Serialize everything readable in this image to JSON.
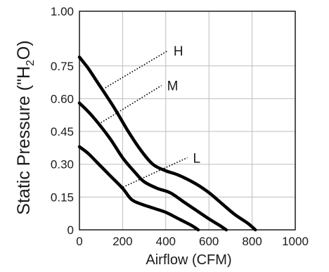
{
  "chart_data": {
    "type": "line",
    "title": "",
    "xlabel": "Airflow (CFM)",
    "ylabel": "Static Pressure (\"H",
    "ylabel_subscript": "2",
    "ylabel_suffix": "O)",
    "xlim": [
      0,
      1000
    ],
    "ylim": [
      0,
      1.0
    ],
    "x_ticks": [
      0,
      200,
      400,
      600,
      800,
      1000
    ],
    "x_tick_labels": [
      "0",
      "200",
      "400",
      "600",
      "800",
      "1000"
    ],
    "y_ticks": [
      0,
      0.15,
      0.3,
      0.45,
      0.6,
      0.75,
      1.0
    ],
    "y_tick_labels": [
      "0",
      "0.15",
      "0.30",
      "0.45",
      "0.60",
      "0.75",
      "1.00"
    ],
    "grid": true,
    "series": [
      {
        "name": "H",
        "points": [
          [
            0,
            0.79
          ],
          [
            40,
            0.74
          ],
          [
            80,
            0.68
          ],
          [
            160,
            0.56
          ],
          [
            220,
            0.46
          ],
          [
            280,
            0.37
          ],
          [
            340,
            0.3
          ],
          [
            400,
            0.27
          ],
          [
            460,
            0.25
          ],
          [
            540,
            0.21
          ],
          [
            600,
            0.17
          ],
          [
            660,
            0.12
          ],
          [
            720,
            0.07
          ],
          [
            780,
            0.03
          ],
          [
            815,
            0.0
          ]
        ]
      },
      {
        "name": "M",
        "points": [
          [
            0,
            0.58
          ],
          [
            60,
            0.52
          ],
          [
            140,
            0.42
          ],
          [
            200,
            0.33
          ],
          [
            260,
            0.26
          ],
          [
            300,
            0.22
          ],
          [
            360,
            0.19
          ],
          [
            420,
            0.17
          ],
          [
            480,
            0.13
          ],
          [
            540,
            0.09
          ],
          [
            600,
            0.05
          ],
          [
            650,
            0.02
          ],
          [
            680,
            0.0
          ]
        ]
      },
      {
        "name": "L",
        "points": [
          [
            0,
            0.38
          ],
          [
            40,
            0.35
          ],
          [
            80,
            0.31
          ],
          [
            140,
            0.25
          ],
          [
            200,
            0.19
          ],
          [
            240,
            0.14
          ],
          [
            280,
            0.12
          ],
          [
            340,
            0.1
          ],
          [
            400,
            0.08
          ],
          [
            460,
            0.05
          ],
          [
            520,
            0.02
          ],
          [
            550,
            0.0
          ]
        ]
      }
    ],
    "annotations": [
      {
        "label": "H",
        "from": [
          120,
          0.65
        ],
        "to": [
          410,
          0.82
        ]
      },
      {
        "label": "M",
        "from": [
          100,
          0.49
        ],
        "to": [
          380,
          0.66
        ]
      },
      {
        "label": "L",
        "from": [
          190,
          0.19
        ],
        "to": [
          500,
          0.33
        ]
      }
    ]
  }
}
